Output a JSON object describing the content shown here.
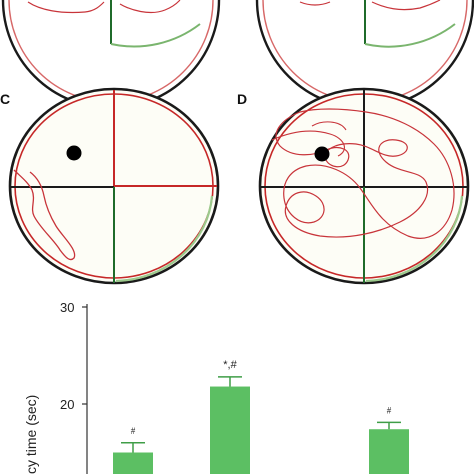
{
  "panels": {
    "c_letter": "C",
    "d_letter": "D"
  },
  "colors": {
    "bar": "#5cbf63",
    "bar_edge": "#3f9e47",
    "path": "#c8343a",
    "quadrant_red": "#c62828",
    "quadrant_dark": "#1a1a1a",
    "quadrant_green": "#1f6b2a",
    "platform": "#000000"
  },
  "chart_data": {
    "type": "bar",
    "ylabel": "cy time (sec)",
    "yticks": [
      "30",
      "20"
    ],
    "ylim": [
      10,
      30
    ],
    "values": [
      15.0,
      21.8,
      17.4
    ],
    "errors": [
      1.0,
      1.0,
      0.7
    ],
    "annotations": [
      "#",
      "*,#",
      "#"
    ]
  }
}
